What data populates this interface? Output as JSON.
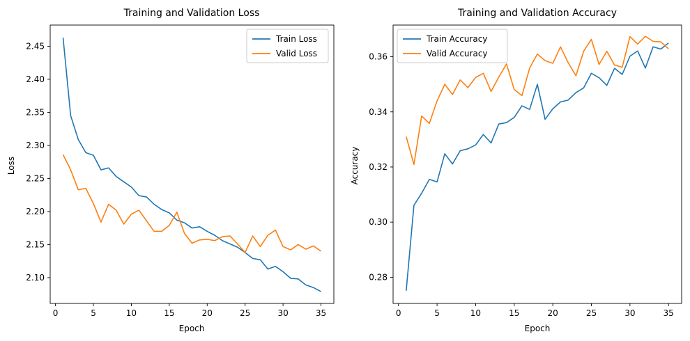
{
  "chart_data": [
    {
      "type": "line",
      "title": "Training and Validation Loss",
      "xlabel": "Epoch",
      "ylabel": "Loss",
      "xlim": [
        -0.7,
        36.7
      ],
      "ylim": [
        2.061,
        2.482
      ],
      "xticks": [
        0,
        5,
        10,
        15,
        20,
        25,
        30,
        35
      ],
      "yticks": [
        2.1,
        2.15,
        2.2,
        2.25,
        2.3,
        2.35,
        2.4,
        2.45
      ],
      "ytick_decimals": 2,
      "legend_position": "top-right",
      "grid": false,
      "x": [
        1,
        2,
        3,
        4,
        5,
        6,
        7,
        8,
        9,
        10,
        11,
        12,
        13,
        14,
        15,
        16,
        17,
        18,
        19,
        20,
        21,
        22,
        23,
        24,
        25,
        26,
        27,
        28,
        29,
        30,
        31,
        32,
        33,
        34,
        35
      ],
      "series": [
        {
          "name": "Train Loss",
          "color": "#1f77b4",
          "values": [
            2.463,
            2.345,
            2.309,
            2.289,
            2.285,
            2.263,
            2.266,
            2.253,
            2.245,
            2.237,
            2.224,
            2.222,
            2.211,
            2.203,
            2.198,
            2.187,
            2.183,
            2.175,
            2.177,
            2.17,
            2.164,
            2.156,
            2.151,
            2.146,
            2.138,
            2.129,
            2.127,
            2.113,
            2.117,
            2.109,
            2.099,
            2.098,
            2.089,
            2.085,
            2.079
          ]
        },
        {
          "name": "Valid Loss",
          "color": "#ff7f0e",
          "values": [
            2.286,
            2.263,
            2.233,
            2.235,
            2.212,
            2.184,
            2.211,
            2.202,
            2.181,
            2.196,
            2.202,
            2.186,
            2.17,
            2.17,
            2.179,
            2.199,
            2.167,
            2.152,
            2.157,
            2.158,
            2.156,
            2.162,
            2.163,
            2.151,
            2.138,
            2.163,
            2.147,
            2.164,
            2.172,
            2.147,
            2.142,
            2.15,
            2.143,
            2.148,
            2.14
          ]
        }
      ]
    },
    {
      "type": "line",
      "title": "Training and Validation Accuracy",
      "xlabel": "Epoch",
      "ylabel": "Accuracy",
      "xlim": [
        -0.7,
        36.7
      ],
      "ylim": [
        0.2705,
        0.3715
      ],
      "xticks": [
        0,
        5,
        10,
        15,
        20,
        25,
        30,
        35
      ],
      "yticks": [
        0.28,
        0.3,
        0.32,
        0.34,
        0.36
      ],
      "ytick_decimals": 2,
      "legend_position": "top-left",
      "grid": false,
      "x": [
        1,
        2,
        3,
        4,
        5,
        6,
        7,
        8,
        9,
        10,
        11,
        12,
        13,
        14,
        15,
        16,
        17,
        18,
        19,
        20,
        21,
        22,
        23,
        24,
        25,
        26,
        27,
        28,
        29,
        30,
        31,
        32,
        33,
        34,
        35
      ],
      "series": [
        {
          "name": "Train Accuracy",
          "color": "#1f77b4",
          "values": [
            0.2751,
            0.3061,
            0.3105,
            0.3155,
            0.3146,
            0.3248,
            0.3211,
            0.3259,
            0.3266,
            0.328,
            0.3318,
            0.3287,
            0.3356,
            0.3361,
            0.338,
            0.3422,
            0.3409,
            0.35,
            0.3373,
            0.3411,
            0.3436,
            0.3443,
            0.347,
            0.3487,
            0.354,
            0.3524,
            0.3496,
            0.3558,
            0.3536,
            0.3602,
            0.3621,
            0.3559,
            0.3636,
            0.3628,
            0.365
          ]
        },
        {
          "name": "Valid Accuracy",
          "color": "#ff7f0e",
          "values": [
            0.331,
            0.3209,
            0.3385,
            0.3358,
            0.344,
            0.35,
            0.3463,
            0.3516,
            0.3488,
            0.3525,
            0.354,
            0.3474,
            0.3526,
            0.3574,
            0.3481,
            0.3459,
            0.3559,
            0.361,
            0.3586,
            0.3576,
            0.3636,
            0.3578,
            0.3531,
            0.362,
            0.3663,
            0.3572,
            0.362,
            0.357,
            0.3562,
            0.3673,
            0.3646,
            0.3674,
            0.3656,
            0.3654,
            0.3629
          ]
        }
      ]
    }
  ]
}
